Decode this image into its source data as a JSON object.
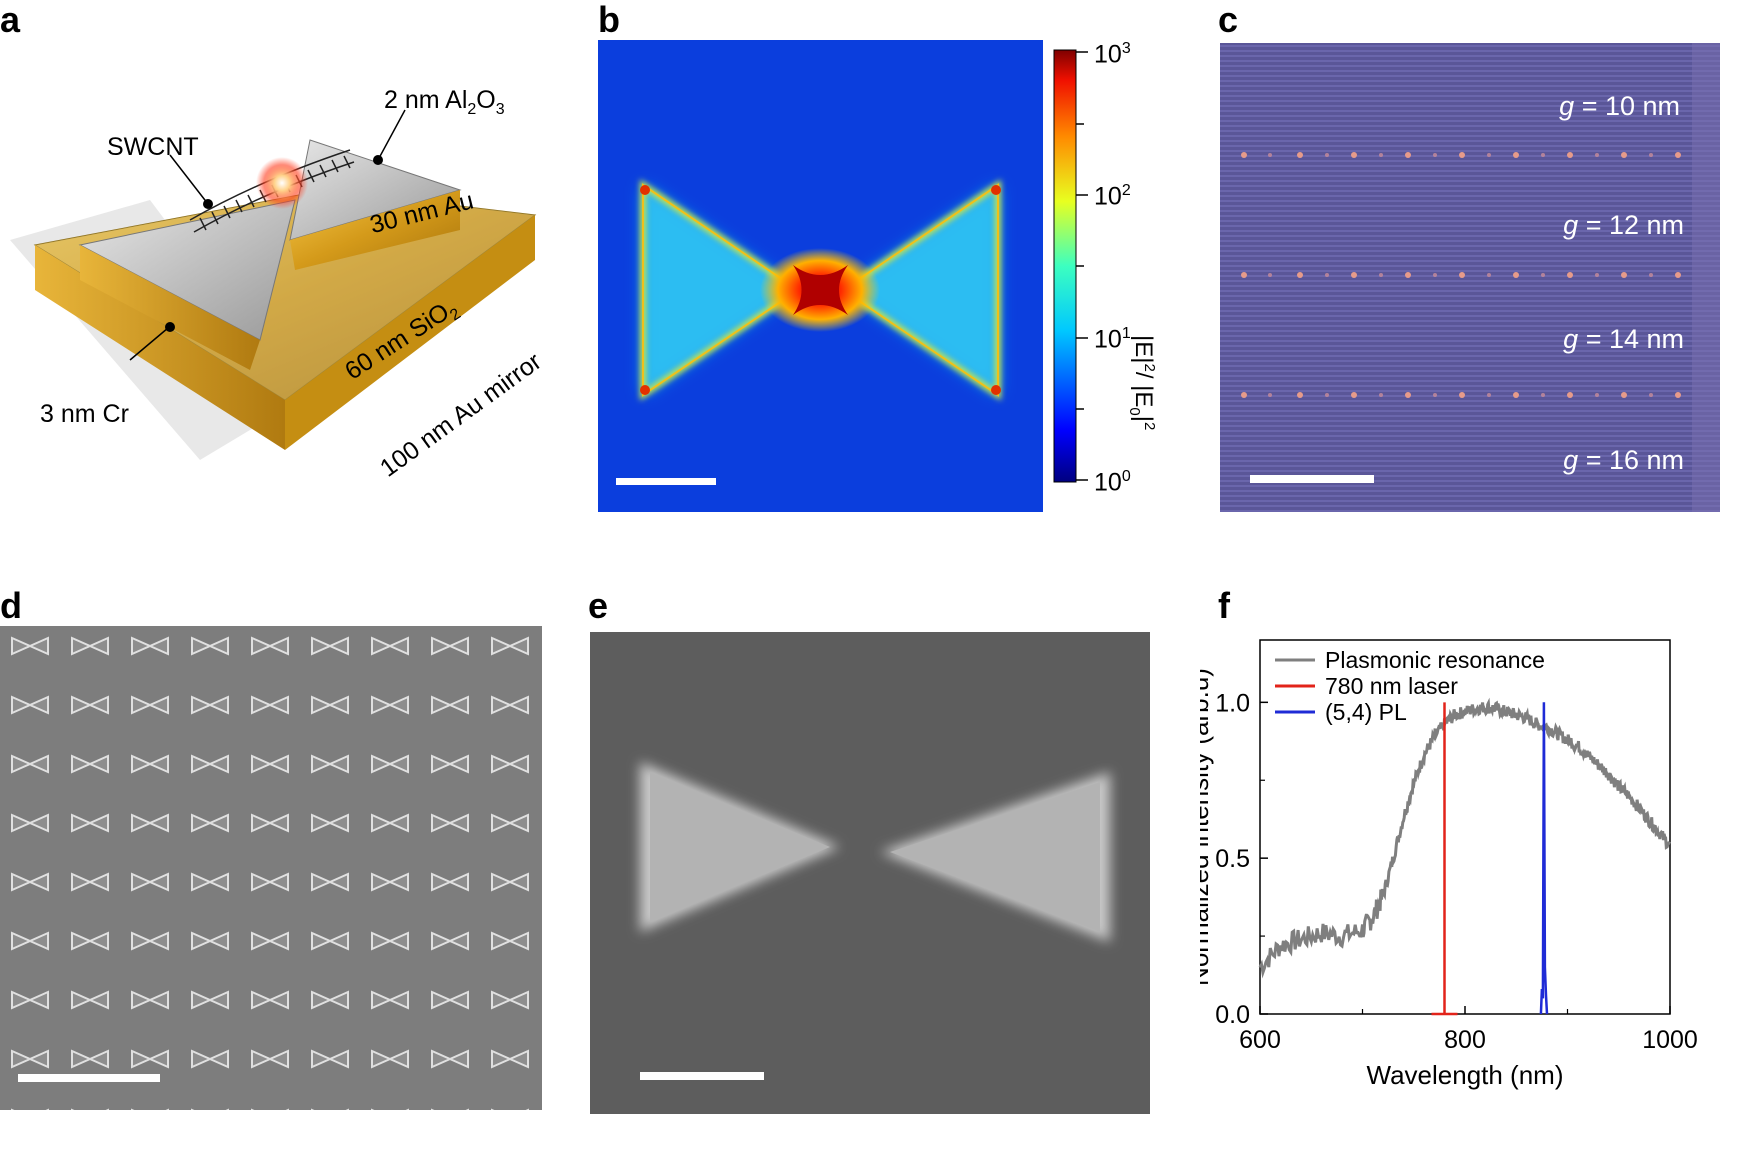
{
  "panels": {
    "a": {
      "letter": "a",
      "labels": {
        "al2o3_pre": "2 nm Al",
        "al2o3_sub1": "2",
        "al2o3_mid": "O",
        "al2o3_sub2": "3",
        "swcnt": "SWCNT",
        "au30": "30 nm Au",
        "sio2_pre": "60 nm SiO",
        "sio2_sub": "2",
        "cr": "3 nm Cr",
        "mirror": "100 nm Au mirror"
      }
    },
    "b": {
      "letter": "b",
      "colorbar": {
        "ticks": [
          {
            "base": "10",
            "exp": "3"
          },
          {
            "base": "10",
            "exp": "2"
          },
          {
            "base": "10",
            "exp": "1"
          },
          {
            "base": "10",
            "exp": "0"
          }
        ],
        "label_parts": [
          "|E|",
          "2",
          "/ |E",
          "0",
          "|",
          "2"
        ]
      }
    },
    "c": {
      "letter": "c",
      "gap_labels": [
        {
          "var": "g",
          "rest": " = 10 nm"
        },
        {
          "var": "g",
          "rest": " = 12 nm"
        },
        {
          "var": "g",
          "rest": " = 14 nm"
        },
        {
          "var": "g",
          "rest": " = 16 nm"
        }
      ]
    },
    "d": {
      "letter": "d"
    },
    "e": {
      "letter": "e"
    },
    "f": {
      "letter": "f"
    }
  },
  "chart_data": {
    "type": "line",
    "title": "",
    "xlabel": "Wavelength (nm)",
    "ylabel": "Normalized intensity (arb.u)",
    "xlim": [
      600,
      1000
    ],
    "ylim": [
      0,
      1.2
    ],
    "xticks": [
      600,
      800,
      1000
    ],
    "yticks": [
      0.0,
      0.5,
      1.0
    ],
    "ytick_labels": [
      "0.0",
      "0.5",
      "1.0"
    ],
    "legend": [
      "Plasmonic resonance",
      "780 nm laser",
      "(5,4) PL"
    ],
    "series": [
      {
        "name": "Plasmonic resonance",
        "color": "#7f7f7f",
        "x": [
          600,
          620,
          640,
          660,
          680,
          700,
          710,
          720,
          730,
          740,
          750,
          760,
          770,
          780,
          790,
          800,
          810,
          820,
          830,
          840,
          850,
          860,
          870,
          880,
          890,
          900,
          910,
          920,
          930,
          940,
          950,
          960,
          970,
          980,
          990,
          1000
        ],
        "y": [
          0.15,
          0.22,
          0.24,
          0.26,
          0.25,
          0.27,
          0.31,
          0.38,
          0.5,
          0.63,
          0.74,
          0.83,
          0.89,
          0.93,
          0.96,
          0.97,
          0.98,
          0.985,
          0.98,
          0.97,
          0.96,
          0.95,
          0.93,
          0.92,
          0.9,
          0.88,
          0.86,
          0.83,
          0.8,
          0.77,
          0.73,
          0.7,
          0.66,
          0.62,
          0.58,
          0.54
        ]
      },
      {
        "name": "780 nm laser",
        "color": "#e2231a",
        "x": [
          780,
          780
        ],
        "y": [
          0,
          1.0
        ]
      },
      {
        "name": "(5,4) PL",
        "color": "#1f2bd6",
        "x": [
          874,
          875,
          876,
          877,
          878,
          879,
          880
        ],
        "y": [
          0.0,
          0.08,
          0.05,
          1.0,
          0.15,
          0.06,
          0.0
        ]
      }
    ]
  }
}
